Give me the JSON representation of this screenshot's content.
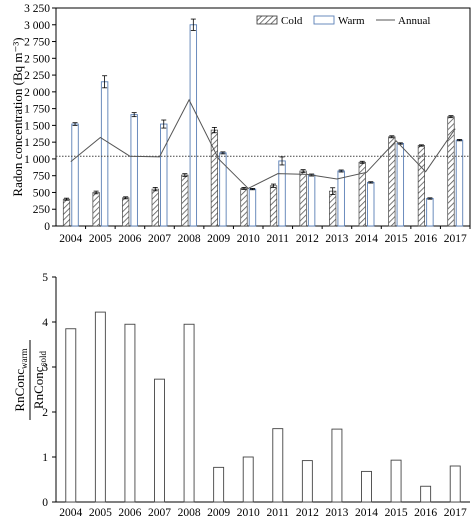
{
  "chart_data": [
    {
      "type": "bar",
      "categories": [
        "2004",
        "2005",
        "2006",
        "2007",
        "2008",
        "2009",
        "2010",
        "2011",
        "2012",
        "2013",
        "2014",
        "2015",
        "2016",
        "2017"
      ],
      "series": [
        {
          "name": "Cold",
          "kind": "bar",
          "pattern": "diagonal-hatch",
          "values": [
            400,
            500,
            420,
            550,
            760,
            1430,
            560,
            600,
            820,
            520,
            950,
            1330,
            1200,
            1630
          ],
          "errors": [
            15,
            20,
            15,
            25,
            20,
            40,
            15,
            25,
            20,
            50,
            15,
            15,
            10,
            15
          ]
        },
        {
          "name": "Warm",
          "kind": "bar",
          "pattern": "open",
          "values": [
            1520,
            2150,
            1660,
            1520,
            3000,
            1090,
            550,
            970,
            760,
            820,
            650,
            1230,
            410,
            1280
          ],
          "errors": [
            20,
            90,
            30,
            60,
            85,
            15,
            10,
            60,
            15,
            15,
            10,
            10,
            10,
            10
          ]
        },
        {
          "name": "Annual",
          "kind": "line",
          "values": [
            960,
            1320,
            1040,
            1030,
            1880,
            1000,
            560,
            780,
            770,
            700,
            800,
            1270,
            810,
            1450
          ]
        }
      ],
      "reference_line": 1040,
      "xlabel": "",
      "ylabel": "Radon concentration (Bq m⁻³)",
      "ylim": [
        0,
        3250
      ],
      "yticks": [
        "0",
        "250",
        "500",
        "750",
        "1 000",
        "1 250",
        "1 500",
        "1 750",
        "2 000",
        "2 250",
        "2 500",
        "2 750",
        "3 000",
        "3 250"
      ],
      "legend": "top-right",
      "grid": false
    },
    {
      "type": "bar",
      "categories": [
        "2004",
        "2005",
        "2006",
        "2007",
        "2008",
        "2009",
        "2010",
        "2011",
        "2012",
        "2013",
        "2014",
        "2015",
        "2016",
        "2017"
      ],
      "values": [
        3.85,
        4.22,
        3.95,
        2.73,
        3.95,
        0.77,
        1.0,
        1.63,
        0.92,
        1.62,
        0.68,
        0.93,
        0.35,
        0.8
      ],
      "xlabel": "",
      "ylabel_numerator": "RnConc",
      "ylabel_numerator_sub": "warm",
      "ylabel_denominator": "RnConc",
      "ylabel_denominator_sub": "cold",
      "ylim": [
        0,
        5
      ],
      "yticks": [
        "0",
        "1",
        "2",
        "3",
        "4",
        "5"
      ],
      "grid": false
    }
  ]
}
